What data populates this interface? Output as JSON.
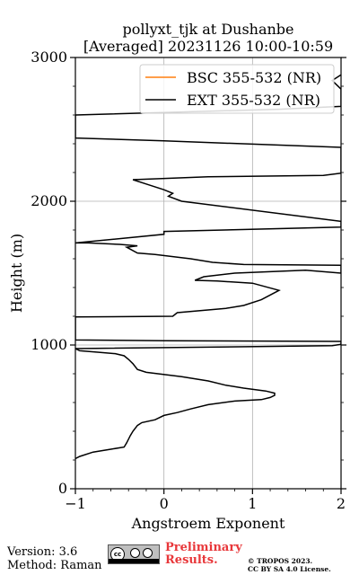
{
  "chart_data": {
    "type": "line",
    "title": "pollyxt_tjk at Dushanbe",
    "subtitle": "[Averaged] 20231126 10:00-10:59",
    "xlabel": "Angstroem Exponent",
    "ylabel": "Height (m)",
    "xlim": [
      -1,
      2
    ],
    "ylim": [
      0,
      3000
    ],
    "xticks": [
      "−1",
      "0",
      "1",
      "2"
    ],
    "xtick_values": [
      -1,
      0,
      1,
      2
    ],
    "yticks": [
      "0",
      "1000",
      "2000",
      "3000"
    ],
    "ytick_values": [
      0,
      1000,
      2000,
      3000
    ],
    "grid": true,
    "legend_position": "top-right",
    "series": [
      {
        "name": "BSC 355-532 (NR)",
        "color": "#ff7f0e",
        "x": [],
        "y": []
      },
      {
        "name": "EXT 355-532 (NR)",
        "color": "#000000",
        "x": [
          -1.0,
          -0.95,
          -0.8,
          -0.6,
          -0.45,
          -0.42,
          -0.38,
          -0.35,
          -0.3,
          -0.25,
          -0.1,
          0.0,
          0.15,
          0.3,
          0.5,
          0.8,
          1.1,
          1.2,
          1.25,
          1.25,
          1.15,
          0.9,
          0.7,
          0.5,
          0.2,
          -0.2,
          -0.3,
          -0.35,
          -0.4,
          -0.45,
          -0.55,
          -0.75,
          -0.95,
          -1.0,
          1.9,
          2.0,
          2.0,
          0.0,
          -1.0,
          -1.0,
          0.1,
          0.15,
          0.7,
          0.9,
          1.1,
          1.3,
          1.0,
          0.6,
          0.35,
          0.45,
          0.8,
          1.6,
          2.0,
          2.0,
          0.9,
          0.55,
          0.3,
          -0.1,
          -0.3,
          -0.42,
          -0.3,
          -0.5,
          -0.85,
          -1.0,
          -0.0,
          0.0,
          2.0,
          2.0,
          0.2,
          0.05,
          0.1,
          0.0,
          -0.2,
          -0.35,
          0.5,
          1.8,
          2.0,
          2.0,
          0.0,
          -1.0,
          -1.0,
          1.3,
          2.0,
          2.0,
          1.9,
          2.0
        ],
        "y": [
          210,
          225,
          255,
          275,
          290,
          320,
          370,
          400,
          440,
          460,
          480,
          510,
          530,
          555,
          585,
          610,
          620,
          635,
          650,
          665,
          680,
          700,
          720,
          750,
          780,
          810,
          830,
          870,
          900,
          925,
          940,
          950,
          960,
          975,
          995,
          1005,
          1025,
          1030,
          1035,
          1195,
          1200,
          1225,
          1255,
          1275,
          1315,
          1380,
          1430,
          1445,
          1450,
          1475,
          1500,
          1520,
          1500,
          1555,
          1560,
          1575,
          1600,
          1630,
          1640,
          1680,
          1690,
          1700,
          1710,
          1710,
          1770,
          1790,
          1820,
          1860,
          2000,
          2035,
          2055,
          2080,
          2120,
          2150,
          2170,
          2180,
          2195,
          2375,
          2420,
          2440,
          2600,
          2640,
          2660,
          2780,
          2840,
          2880
        ]
      }
    ]
  },
  "footer": {
    "version": "Version: 3.6",
    "method": "Method: Raman",
    "preliminary": "Preliminary Results.",
    "copyright_line1": "© TROPOS 2023.",
    "copyright_line2": "CC BY SA 4.0 License."
  }
}
